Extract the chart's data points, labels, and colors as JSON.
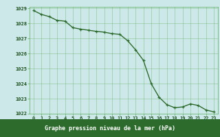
{
  "x": [
    0,
    1,
    2,
    3,
    4,
    5,
    6,
    7,
    8,
    9,
    10,
    11,
    12,
    13,
    14,
    15,
    16,
    17,
    18,
    19,
    20,
    21,
    22,
    23
  ],
  "y": [
    1028.85,
    1028.6,
    1028.45,
    1028.2,
    1028.15,
    1027.72,
    1027.62,
    1027.55,
    1027.47,
    1027.42,
    1027.32,
    1027.27,
    1026.85,
    1026.25,
    1025.55,
    1024.0,
    1023.1,
    1022.6,
    1022.4,
    1022.45,
    1022.65,
    1022.55,
    1022.25,
    1022.12
  ],
  "title": "Graphe pression niveau de la mer (hPa)",
  "ylim": [
    1022.0,
    1029.0
  ],
  "xlim_min": -0.5,
  "xlim_max": 23.5,
  "yticks": [
    1022,
    1023,
    1024,
    1025,
    1026,
    1027,
    1028,
    1029
  ],
  "xticks": [
    0,
    1,
    2,
    3,
    4,
    5,
    6,
    7,
    8,
    9,
    10,
    11,
    12,
    13,
    14,
    15,
    16,
    17,
    18,
    19,
    20,
    21,
    22,
    23
  ],
  "line_color": "#2d6b2d",
  "bg_color": "#cce8e8",
  "grid_color": "#5aaa5a",
  "title_bg": "#2d6b2d",
  "tick_label_color": "#1a4d1a",
  "tick_fontsize": 5.0,
  "title_fontsize": 6.0,
  "linewidth": 1.0,
  "markersize": 3.5
}
